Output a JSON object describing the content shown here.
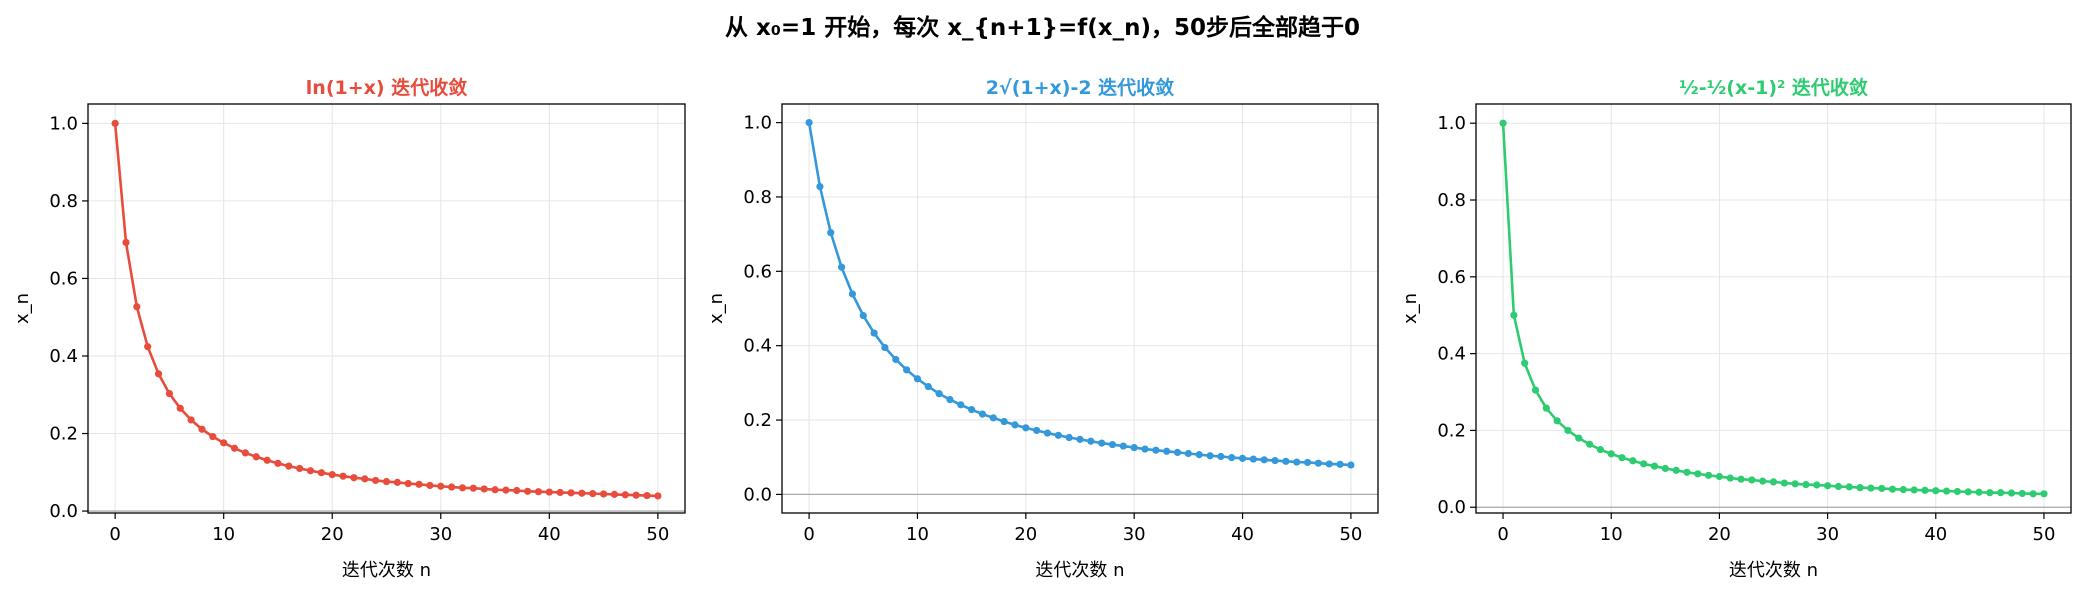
{
  "suptitle": "从 x₀=1 开始，每次 x_{n+1}=f(x_n)，50步后全部趋于0",
  "chart_data": [
    {
      "type": "line",
      "title": "ln(1+x) 迭代收敛",
      "color": "#e74c3c",
      "xlabel": "迭代次数 n",
      "ylabel": "x_n",
      "xlim": [
        -2.5,
        52.5
      ],
      "ylim": [
        -0.005,
        1.05
      ],
      "xticks": [
        0,
        10,
        20,
        30,
        40,
        50
      ],
      "yticks": [
        0.0,
        0.2,
        0.4,
        0.6,
        0.8,
        1.0
      ],
      "grid": true,
      "hline": 0,
      "x": [
        0,
        1,
        2,
        3,
        4,
        5,
        6,
        7,
        8,
        9,
        10,
        11,
        12,
        13,
        14,
        15,
        16,
        17,
        18,
        19,
        20,
        21,
        22,
        23,
        24,
        25,
        26,
        27,
        28,
        29,
        30,
        31,
        32,
        33,
        34,
        35,
        36,
        37,
        38,
        39,
        40,
        41,
        42,
        43,
        44,
        45,
        46,
        47,
        48,
        49,
        50
      ],
      "y": [
        1.0,
        0.693,
        0.527,
        0.424,
        0.354,
        0.303,
        0.265,
        0.235,
        0.211,
        0.192,
        0.176,
        0.162,
        0.15,
        0.14,
        0.131,
        0.123,
        0.116,
        0.11,
        0.104,
        0.099,
        0.094,
        0.09,
        0.086,
        0.083,
        0.079,
        0.076,
        0.074,
        0.071,
        0.069,
        0.066,
        0.064,
        0.062,
        0.06,
        0.059,
        0.057,
        0.055,
        0.054,
        0.053,
        0.051,
        0.05,
        0.049,
        0.048,
        0.047,
        0.046,
        0.045,
        0.044,
        0.043,
        0.042,
        0.041,
        0.04,
        0.039
      ]
    },
    {
      "type": "line",
      "title": "2√(1+x)-2 迭代收敛",
      "color": "#3498db",
      "xlabel": "迭代次数 n",
      "ylabel": "x_n",
      "xlim": [
        -2.5,
        52.5
      ],
      "ylim": [
        -0.05,
        1.05
      ],
      "xticks": [
        0,
        10,
        20,
        30,
        40,
        50
      ],
      "yticks": [
        0.0,
        0.2,
        0.4,
        0.6,
        0.8,
        1.0
      ],
      "grid": true,
      "hline": 0,
      "x": [
        0,
        1,
        2,
        3,
        4,
        5,
        6,
        7,
        8,
        9,
        10,
        11,
        12,
        13,
        14,
        15,
        16,
        17,
        18,
        19,
        20,
        21,
        22,
        23,
        24,
        25,
        26,
        27,
        28,
        29,
        30,
        31,
        32,
        33,
        34,
        35,
        36,
        37,
        38,
        39,
        40,
        41,
        42,
        43,
        44,
        45,
        46,
        47,
        48,
        49,
        50
      ],
      "y": [
        1.0,
        0.828,
        0.704,
        0.611,
        0.539,
        0.481,
        0.434,
        0.395,
        0.363,
        0.335,
        0.311,
        0.29,
        0.271,
        0.255,
        0.241,
        0.228,
        0.216,
        0.206,
        0.196,
        0.187,
        0.179,
        0.172,
        0.165,
        0.159,
        0.153,
        0.148,
        0.143,
        0.138,
        0.134,
        0.13,
        0.126,
        0.122,
        0.119,
        0.116,
        0.113,
        0.11,
        0.107,
        0.104,
        0.102,
        0.099,
        0.097,
        0.095,
        0.093,
        0.091,
        0.089,
        0.087,
        0.086,
        0.084,
        0.082,
        0.081,
        0.079
      ]
    },
    {
      "type": "line",
      "title": "½-½(x-1)² 迭代收敛",
      "color": "#2ecc71",
      "xlabel": "迭代次数 n",
      "ylabel": "x_n",
      "xlim": [
        -2.5,
        52.5
      ],
      "ylim": [
        -0.015,
        1.05
      ],
      "xticks": [
        0,
        10,
        20,
        30,
        40,
        50
      ],
      "yticks": [
        0.0,
        0.2,
        0.4,
        0.6,
        0.8,
        1.0
      ],
      "grid": true,
      "hline": 0,
      "x": [
        0,
        1,
        2,
        3,
        4,
        5,
        6,
        7,
        8,
        9,
        10,
        11,
        12,
        13,
        14,
        15,
        16,
        17,
        18,
        19,
        20,
        21,
        22,
        23,
        24,
        25,
        26,
        27,
        28,
        29,
        30,
        31,
        32,
        33,
        34,
        35,
        36,
        37,
        38,
        39,
        40,
        41,
        42,
        43,
        44,
        45,
        46,
        47,
        48,
        49,
        50
      ],
      "y": [
        1.0,
        0.5,
        0.375,
        0.305,
        0.258,
        0.225,
        0.2,
        0.18,
        0.164,
        0.15,
        0.139,
        0.129,
        0.121,
        0.113,
        0.107,
        0.101,
        0.096,
        0.091,
        0.087,
        0.083,
        0.08,
        0.076,
        0.073,
        0.071,
        0.068,
        0.066,
        0.063,
        0.061,
        0.059,
        0.058,
        0.056,
        0.054,
        0.053,
        0.051,
        0.05,
        0.049,
        0.047,
        0.046,
        0.045,
        0.044,
        0.043,
        0.042,
        0.041,
        0.04,
        0.039,
        0.038,
        0.038,
        0.037,
        0.036,
        0.035,
        0.035
      ]
    }
  ]
}
